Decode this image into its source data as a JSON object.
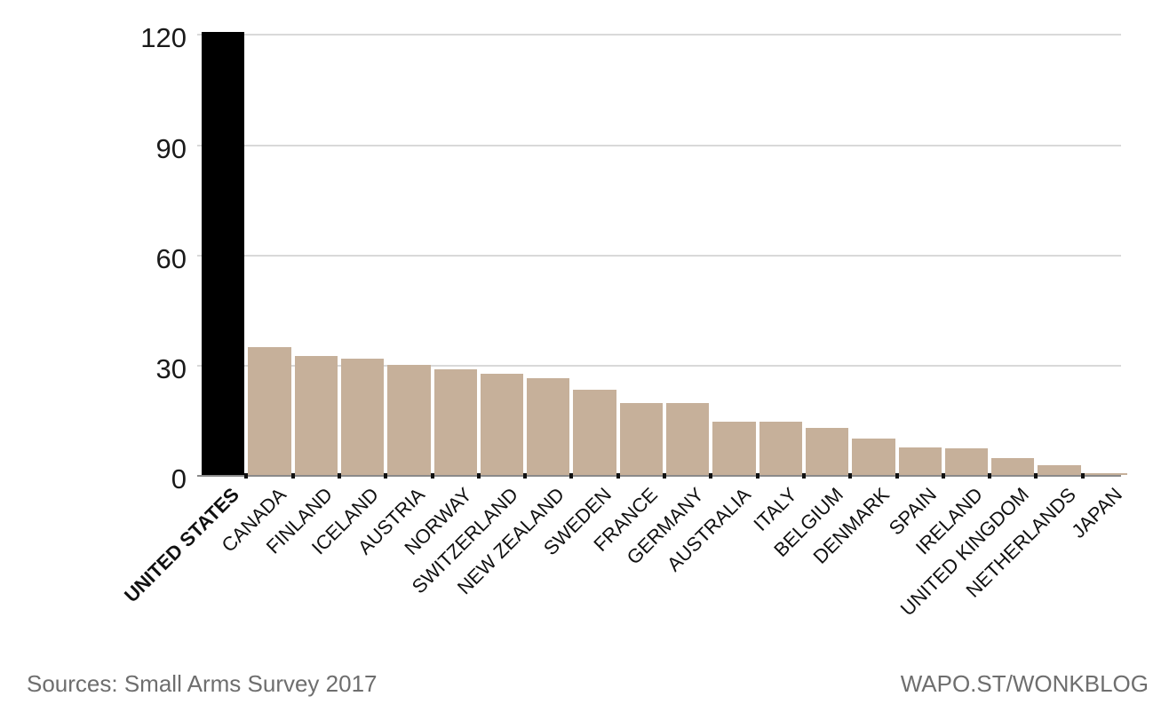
{
  "chart_data": {
    "type": "bar",
    "title": "",
    "categories": [
      "UNITED STATES",
      "CANADA",
      "FINLAND",
      "ICELAND",
      "AUSTRIA",
      "NORWAY",
      "SWITZERLAND",
      "NEW ZEALAND",
      "SWEDEN",
      "FRANCE",
      "GERMANY",
      "AUSTRALIA",
      "ITALY",
      "BELGIUM",
      "DENMARK",
      "SPAIN",
      "IRELAND",
      "UNITED KINGDOM",
      "NETHERLANDS",
      "JAPAN"
    ],
    "values": [
      120.5,
      34.7,
      32.4,
      31.7,
      30.0,
      28.8,
      27.6,
      26.3,
      23.1,
      19.6,
      19.6,
      14.5,
      14.4,
      12.7,
      9.9,
      7.5,
      7.2,
      4.6,
      2.6,
      0.3
    ],
    "highlight_index": 0,
    "highlight_category": "UNITED STATES",
    "yticks": [
      "0",
      "30",
      "60",
      "90",
      "120"
    ],
    "ytick_values": [
      0,
      30,
      60,
      90,
      120
    ],
    "ylim": [
      0,
      122
    ],
    "grid": true,
    "legend": "none",
    "colors": {
      "bar": "#c6b09a",
      "highlight_bar": "#000000",
      "gridline": "#d9d9d9",
      "axis_line": "#8a8a8a",
      "tick_mark": "#111111",
      "axis_label": "#1a1a1a",
      "footer_text": "#6e6e6e"
    }
  },
  "footer": {
    "source": "Sources: Small Arms Survey 2017",
    "branding": "WAPO.ST/WONKBLOG"
  }
}
